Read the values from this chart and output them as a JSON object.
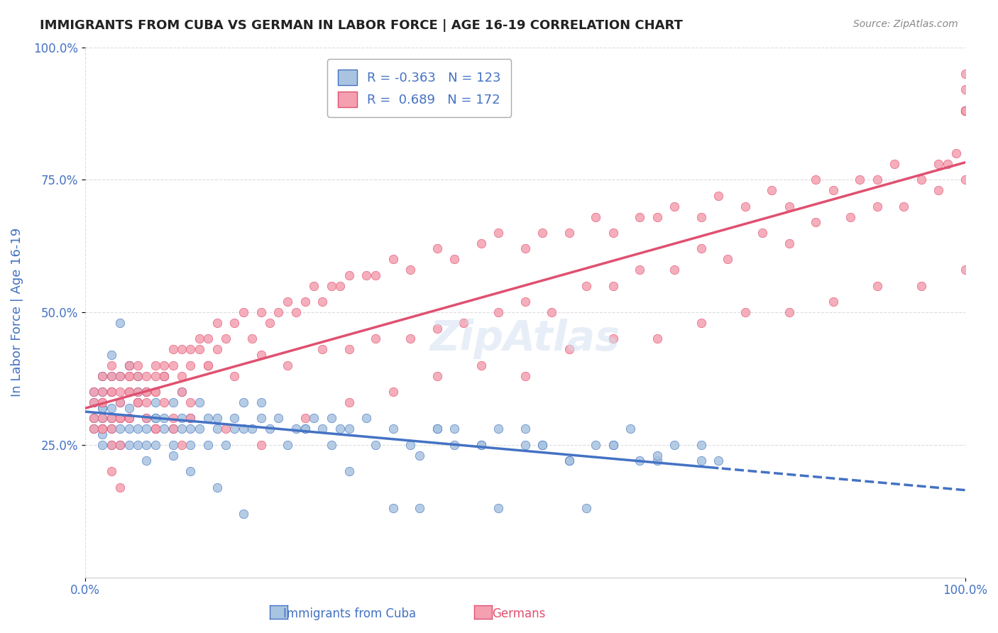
{
  "title": "IMMIGRANTS FROM CUBA VS GERMAN IN LABOR FORCE | AGE 16-19 CORRELATION CHART",
  "source": "Source: ZipAtlas.com",
  "ylabel": "In Labor Force | Age 16-19",
  "xlabel": "",
  "xlim": [
    0.0,
    1.0
  ],
  "ylim": [
    0.0,
    1.0
  ],
  "xtick_labels": [
    "0.0%",
    "100.0%"
  ],
  "ytick_labels": [
    "25.0%",
    "50.0%",
    "75.0%",
    "100.0%"
  ],
  "ytick_positions": [
    0.25,
    0.5,
    0.75,
    1.0
  ],
  "watermark": "ZipAtlas",
  "legend_r_cuba": "-0.363",
  "legend_n_cuba": "123",
  "legend_r_german": "0.689",
  "legend_n_german": "172",
  "color_cuba": "#a8c4e0",
  "color_german": "#f4a0b0",
  "color_line_cuba": "#4472c4",
  "color_line_german": "#e05070",
  "title_color": "#222222",
  "axis_label_color": "#4472c4",
  "tick_label_color": "#4472c4",
  "background_color": "#ffffff",
  "grid_color": "#dddddd",
  "cuba_x": [
    0.01,
    0.01,
    0.01,
    0.01,
    0.02,
    0.02,
    0.02,
    0.02,
    0.02,
    0.02,
    0.02,
    0.02,
    0.03,
    0.03,
    0.03,
    0.03,
    0.03,
    0.03,
    0.04,
    0.04,
    0.04,
    0.04,
    0.04,
    0.05,
    0.05,
    0.05,
    0.05,
    0.05,
    0.05,
    0.06,
    0.06,
    0.06,
    0.06,
    0.07,
    0.07,
    0.07,
    0.07,
    0.08,
    0.08,
    0.08,
    0.08,
    0.09,
    0.09,
    0.09,
    0.1,
    0.1,
    0.1,
    0.11,
    0.11,
    0.11,
    0.12,
    0.12,
    0.12,
    0.13,
    0.13,
    0.14,
    0.14,
    0.15,
    0.15,
    0.16,
    0.17,
    0.17,
    0.18,
    0.18,
    0.19,
    0.2,
    0.21,
    0.22,
    0.23,
    0.24,
    0.25,
    0.26,
    0.27,
    0.28,
    0.29,
    0.3,
    0.32,
    0.33,
    0.35,
    0.37,
    0.4,
    0.42,
    0.45,
    0.47,
    0.5,
    0.52,
    0.55,
    0.58,
    0.6,
    0.63,
    0.65,
    0.67,
    0.7,
    0.72,
    0.03,
    0.04,
    0.05,
    0.06,
    0.07,
    0.08,
    0.1,
    0.12,
    0.15,
    0.18,
    0.2,
    0.25,
    0.28,
    0.3,
    0.35,
    0.38,
    0.4,
    0.45,
    0.5,
    0.55,
    0.6,
    0.65,
    0.7,
    0.38,
    0.42,
    0.47,
    0.52,
    0.57,
    0.62
  ],
  "cuba_y": [
    0.33,
    0.3,
    0.28,
    0.35,
    0.32,
    0.3,
    0.28,
    0.25,
    0.35,
    0.38,
    0.32,
    0.27,
    0.3,
    0.28,
    0.25,
    0.35,
    0.38,
    0.32,
    0.3,
    0.28,
    0.33,
    0.25,
    0.38,
    0.32,
    0.28,
    0.35,
    0.3,
    0.25,
    0.4,
    0.33,
    0.28,
    0.25,
    0.38,
    0.3,
    0.35,
    0.28,
    0.25,
    0.33,
    0.28,
    0.3,
    0.25,
    0.38,
    0.3,
    0.28,
    0.33,
    0.28,
    0.25,
    0.3,
    0.28,
    0.35,
    0.3,
    0.25,
    0.28,
    0.33,
    0.28,
    0.3,
    0.25,
    0.28,
    0.3,
    0.25,
    0.28,
    0.3,
    0.28,
    0.33,
    0.28,
    0.3,
    0.28,
    0.3,
    0.25,
    0.28,
    0.28,
    0.3,
    0.28,
    0.25,
    0.28,
    0.28,
    0.3,
    0.25,
    0.28,
    0.25,
    0.28,
    0.28,
    0.25,
    0.28,
    0.25,
    0.25,
    0.22,
    0.25,
    0.25,
    0.22,
    0.22,
    0.25,
    0.22,
    0.22,
    0.42,
    0.48,
    0.4,
    0.35,
    0.22,
    0.3,
    0.23,
    0.2,
    0.17,
    0.12,
    0.33,
    0.28,
    0.3,
    0.2,
    0.13,
    0.23,
    0.28,
    0.25,
    0.28,
    0.22,
    0.25,
    0.23,
    0.25,
    0.13,
    0.25,
    0.13,
    0.25,
    0.13,
    0.28
  ],
  "german_x": [
    0.01,
    0.01,
    0.01,
    0.01,
    0.02,
    0.02,
    0.02,
    0.02,
    0.02,
    0.03,
    0.03,
    0.03,
    0.03,
    0.03,
    0.04,
    0.04,
    0.04,
    0.04,
    0.05,
    0.05,
    0.05,
    0.05,
    0.06,
    0.06,
    0.06,
    0.07,
    0.07,
    0.07,
    0.08,
    0.08,
    0.08,
    0.09,
    0.09,
    0.1,
    0.1,
    0.11,
    0.11,
    0.12,
    0.12,
    0.13,
    0.13,
    0.14,
    0.14,
    0.15,
    0.15,
    0.16,
    0.17,
    0.18,
    0.19,
    0.2,
    0.21,
    0.22,
    0.23,
    0.24,
    0.25,
    0.26,
    0.27,
    0.28,
    0.29,
    0.3,
    0.32,
    0.33,
    0.35,
    0.37,
    0.4,
    0.42,
    0.45,
    0.47,
    0.5,
    0.52,
    0.55,
    0.58,
    0.6,
    0.63,
    0.65,
    0.67,
    0.7,
    0.72,
    0.75,
    0.78,
    0.8,
    0.83,
    0.85,
    0.88,
    0.9,
    0.92,
    0.95,
    0.97,
    0.98,
    0.99,
    1.0,
    1.0,
    1.0,
    1.0,
    1.0,
    1.0,
    1.0,
    1.0,
    1.0,
    1.0,
    0.03,
    0.05,
    0.07,
    0.09,
    0.11,
    0.14,
    0.17,
    0.2,
    0.23,
    0.27,
    0.3,
    0.33,
    0.37,
    0.4,
    0.43,
    0.47,
    0.5,
    0.53,
    0.57,
    0.6,
    0.63,
    0.67,
    0.7,
    0.73,
    0.77,
    0.8,
    0.83,
    0.87,
    0.9,
    0.93,
    0.97,
    1.0,
    0.04,
    0.08,
    0.12,
    0.16,
    0.2,
    0.25,
    0.3,
    0.35,
    0.4,
    0.45,
    0.5,
    0.55,
    0.6,
    0.65,
    0.7,
    0.75,
    0.8,
    0.85,
    0.9,
    0.95,
    1.0,
    0.02,
    0.02,
    0.03,
    0.04,
    0.04,
    0.05,
    0.05,
    0.06,
    0.06,
    0.07,
    0.08,
    0.08,
    0.09,
    0.1,
    0.1,
    0.11,
    0.12,
    0.03,
    0.04
  ],
  "german_y": [
    0.3,
    0.35,
    0.28,
    0.33,
    0.35,
    0.3,
    0.38,
    0.28,
    0.33,
    0.4,
    0.35,
    0.3,
    0.28,
    0.38,
    0.35,
    0.3,
    0.38,
    0.33,
    0.35,
    0.4,
    0.3,
    0.38,
    0.33,
    0.35,
    0.4,
    0.38,
    0.33,
    0.35,
    0.4,
    0.38,
    0.35,
    0.4,
    0.38,
    0.43,
    0.4,
    0.43,
    0.38,
    0.43,
    0.4,
    0.45,
    0.43,
    0.45,
    0.4,
    0.48,
    0.43,
    0.45,
    0.48,
    0.5,
    0.45,
    0.5,
    0.48,
    0.5,
    0.52,
    0.5,
    0.52,
    0.55,
    0.52,
    0.55,
    0.55,
    0.57,
    0.57,
    0.57,
    0.6,
    0.58,
    0.62,
    0.6,
    0.63,
    0.65,
    0.62,
    0.65,
    0.65,
    0.68,
    0.65,
    0.68,
    0.68,
    0.7,
    0.68,
    0.72,
    0.7,
    0.73,
    0.7,
    0.75,
    0.73,
    0.75,
    0.75,
    0.78,
    0.75,
    0.78,
    0.78,
    0.8,
    0.95,
    0.92,
    0.88,
    0.88,
    0.88,
    0.88,
    0.88,
    0.88,
    0.88,
    0.88,
    0.35,
    0.38,
    0.35,
    0.38,
    0.35,
    0.4,
    0.38,
    0.42,
    0.4,
    0.43,
    0.43,
    0.45,
    0.45,
    0.47,
    0.48,
    0.5,
    0.52,
    0.5,
    0.55,
    0.55,
    0.58,
    0.58,
    0.62,
    0.6,
    0.65,
    0.63,
    0.67,
    0.68,
    0.7,
    0.7,
    0.73,
    0.75,
    0.3,
    0.28,
    0.3,
    0.28,
    0.25,
    0.3,
    0.33,
    0.35,
    0.38,
    0.4,
    0.38,
    0.43,
    0.45,
    0.45,
    0.48,
    0.5,
    0.5,
    0.52,
    0.55,
    0.55,
    0.58,
    0.28,
    0.33,
    0.25,
    0.3,
    0.25,
    0.35,
    0.3,
    0.38,
    0.33,
    0.3,
    0.35,
    0.28,
    0.33,
    0.28,
    0.3,
    0.25,
    0.33,
    0.2,
    0.17
  ]
}
